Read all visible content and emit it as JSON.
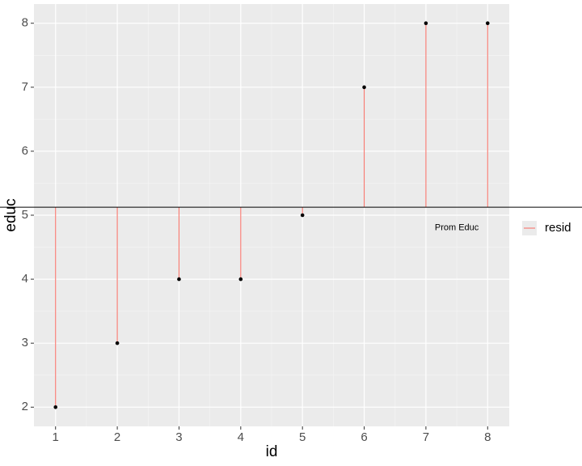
{
  "chart_data": {
    "type": "residual-segments",
    "x": [
      1,
      2,
      3,
      4,
      5,
      6,
      7,
      8
    ],
    "series": [
      {
        "name": "resid",
        "color": "#F8766D",
        "values": [
          2,
          3,
          4,
          4,
          5,
          7,
          8,
          8
        ]
      }
    ],
    "point_color": "#000000",
    "hline": 5.125,
    "annotation": {
      "text": "Prom Educ",
      "x": 7.5,
      "y": 4.8
    },
    "xlabel": "id",
    "ylabel": "educ",
    "xlim": [
      0.65,
      8.35
    ],
    "ylim": [
      1.7,
      8.3
    ],
    "xticks": [
      1,
      2,
      3,
      4,
      5,
      6,
      7,
      8
    ],
    "yticks": [
      2,
      3,
      4,
      5,
      6,
      7,
      8
    ],
    "grid": true,
    "legend": "right"
  }
}
